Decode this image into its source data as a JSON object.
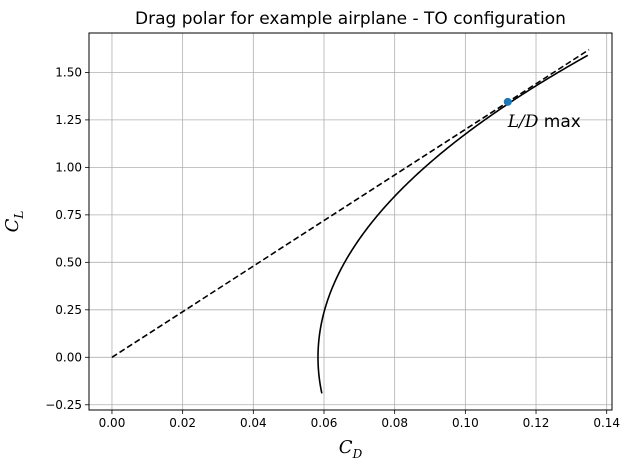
{
  "chart_data": {
    "type": "line",
    "title": "Drag polar for example airplane - TO configuration",
    "xlabel": {
      "main": "C",
      "sub": "D"
    },
    "ylabel": {
      "main": "C",
      "sub": "L"
    },
    "xlim": [
      -0.0065,
      0.1415
    ],
    "ylim": [
      -0.2775,
      1.7075
    ],
    "grid": true,
    "xticks": [
      0.0,
      0.02,
      0.04,
      0.06,
      0.08,
      0.1,
      0.12,
      0.14
    ],
    "xtick_labels": [
      "0.00",
      "0.02",
      "0.04",
      "0.06",
      "0.08",
      "0.10",
      "0.12",
      "0.14"
    ],
    "yticks": [
      -0.25,
      0.0,
      0.25,
      0.5,
      0.75,
      1.0,
      1.25,
      1.5
    ],
    "ytick_labels": [
      "−0.25",
      "0.00",
      "0.25",
      "0.50",
      "0.75",
      "1.00",
      "1.25",
      "1.50"
    ],
    "polar": {
      "cd0": 0.0583,
      "k": 0.0302,
      "cl_range": [
        -0.19,
        1.59
      ]
    },
    "series": [
      {
        "style": "solid",
        "color": "#000000",
        "x": [
          0.0594,
          0.0589,
          0.0587,
          0.0589,
          0.0597,
          0.0612,
          0.0631,
          0.0656,
          0.0687,
          0.0722,
          0.0764,
          0.0811,
          0.0863,
          0.0921,
          0.0984,
          0.1052,
          0.1127,
          0.1206,
          0.1291,
          0.1347
        ],
        "y": [
          -0.19,
          -0.09,
          0.0,
          0.1,
          0.2,
          0.3,
          0.4,
          0.5,
          0.6,
          0.7,
          0.8,
          0.9,
          1.0,
          1.1,
          1.2,
          1.3,
          1.4,
          1.5,
          1.6,
          1.6
        ]
      },
      {
        "style": "dashed",
        "color": "#000000",
        "x": [
          0.0,
          0.135
        ],
        "y": [
          0.0,
          1.62
        ]
      }
    ],
    "point": {
      "x": 0.112,
      "y": 1.345,
      "color": "#1f77b4"
    },
    "annotation": {
      "x": 0.112,
      "y": 1.245,
      "italic": "L/D",
      "text": " max"
    }
  }
}
